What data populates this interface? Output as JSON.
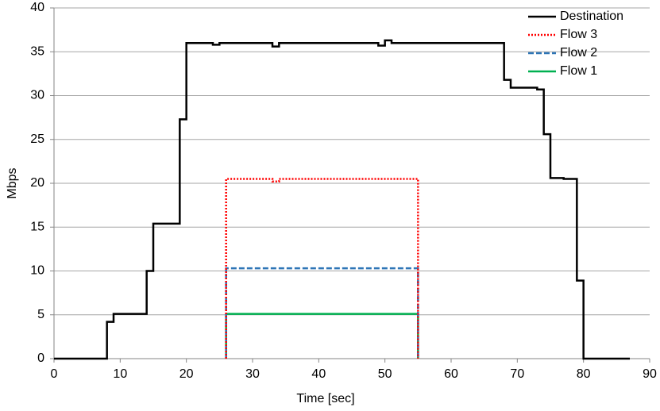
{
  "chart_data": {
    "type": "step-line",
    "xlabel": "Time [sec]",
    "ylabel": "Mbps",
    "xlim": [
      0,
      90
    ],
    "xticks": [
      0,
      10,
      20,
      30,
      40,
      50,
      60,
      70,
      80,
      90
    ],
    "ylim": [
      0,
      40
    ],
    "yticks": [
      0,
      5,
      10,
      15,
      20,
      25,
      30,
      35,
      40
    ],
    "grid": true,
    "legend": "top-right",
    "series": [
      {
        "name": "Destination",
        "color": "#000000",
        "dash": "solid",
        "x": [
          0,
          8,
          9,
          14,
          15,
          19,
          20,
          24,
          25,
          33,
          34,
          49,
          50,
          51,
          68,
          69,
          73,
          74,
          75,
          77,
          79,
          80,
          87
        ],
        "values": [
          0,
          4.2,
          5.1,
          10,
          15.4,
          27.3,
          36,
          35.8,
          36,
          35.6,
          36,
          35.7,
          36.3,
          36,
          31.8,
          30.9,
          30.7,
          25.6,
          20.6,
          20.5,
          8.9,
          0,
          0
        ]
      },
      {
        "name": "Flow 3",
        "color": "#ff0000",
        "dash": "dotted",
        "x": [
          26,
          26,
          33,
          34,
          55
        ],
        "values": [
          0,
          20.5,
          20.2,
          20.5,
          0
        ]
      },
      {
        "name": "Flow 2",
        "color": "#2e75b6",
        "dash": "dashed",
        "x": [
          26,
          26,
          55
        ],
        "values": [
          0,
          10.3,
          0
        ]
      },
      {
        "name": "Flow 1",
        "color": "#00b050",
        "dash": "solid",
        "x": [
          26,
          26,
          55
        ],
        "values": [
          0,
          5.1,
          0
        ]
      }
    ]
  }
}
